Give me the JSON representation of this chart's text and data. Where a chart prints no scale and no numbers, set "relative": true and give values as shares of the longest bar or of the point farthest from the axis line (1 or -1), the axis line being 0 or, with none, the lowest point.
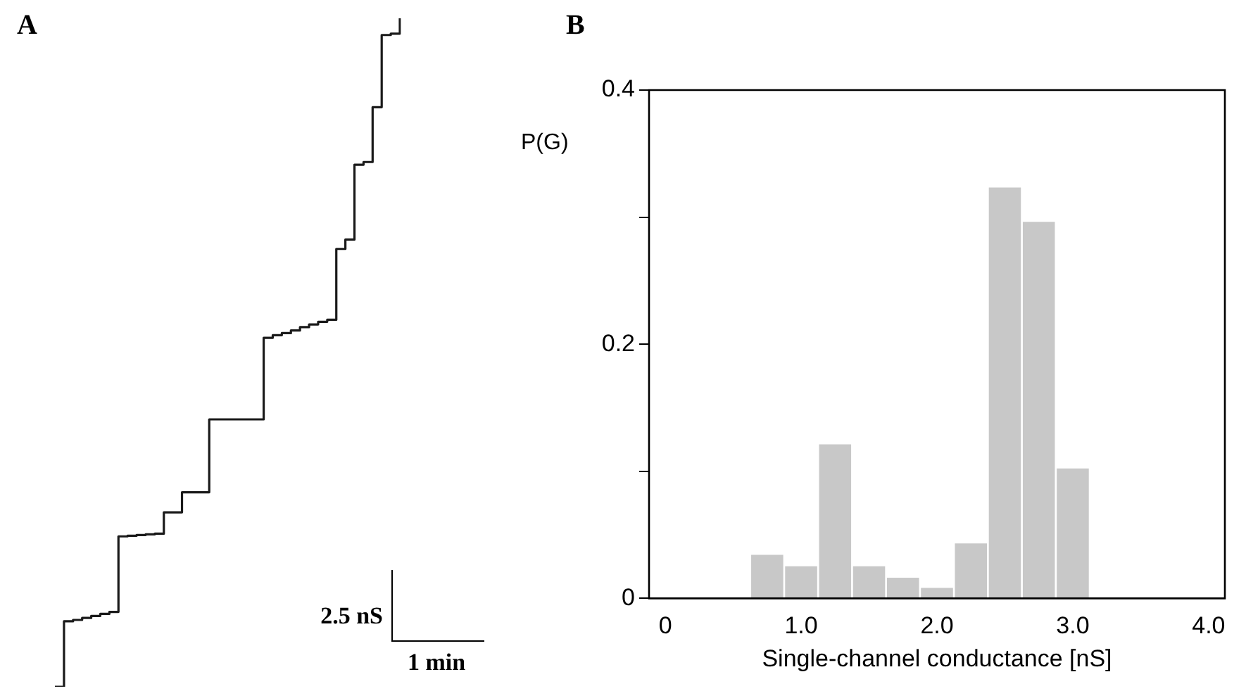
{
  "chart_data": [
    {
      "type": "step",
      "title": "A",
      "relative": true,
      "color": "#1a1a1a",
      "categories": [
        null,
        null,
        null,
        null,
        null,
        null,
        null,
        null,
        null,
        null,
        null,
        null,
        null,
        null,
        null,
        null,
        null,
        null,
        null,
        null,
        null,
        null,
        null,
        null,
        null,
        null,
        null,
        null,
        null,
        null,
        null,
        null,
        null,
        null,
        null,
        null,
        null,
        null,
        null
      ],
      "values": [
        0,
        0.098,
        0.1,
        0.103,
        0.106,
        0.109,
        0.112,
        0.225,
        0.226,
        0.227,
        0.228,
        0.229,
        0.261,
        0.261,
        0.291,
        0.291,
        0.291,
        0.4,
        0.4,
        0.4,
        0.4,
        0.4,
        0.4,
        0.522,
        0.526,
        0.529,
        0.533,
        0.538,
        0.542,
        0.546,
        0.549,
        0.655,
        0.669,
        0.781,
        0.785,
        0.867,
        0.975,
        0.977,
        1
      ],
      "annotations": [
        "2.5 nS",
        "1 min"
      ]
    },
    {
      "type": "histogram",
      "title": "B",
      "xlabel": "Single-channel conductance [nS]",
      "ylabel": "P(G)",
      "color": "#c8c8c8",
      "bins": [
        0.625,
        0.875,
        1.125,
        1.375,
        1.625,
        1.875,
        2.125,
        2.375,
        2.625,
        2.875,
        3.125
      ],
      "values": [
        0.035,
        0.026,
        0.122,
        0.026,
        0.017,
        0.009,
        0.044,
        0.324,
        0.297,
        0.103
      ],
      "xlim": [
        -0.12,
        4.12
      ],
      "ylim": [
        0,
        0.4
      ],
      "xticks": [
        0,
        {
          "value": 1,
          "label": "1.0"
        },
        {
          "value": 2,
          "label": "2.0"
        },
        {
          "value": 3,
          "label": "3.0"
        },
        {
          "value": 4,
          "label": "4.0"
        }
      ],
      "yticks": [
        0,
        {
          "value": 0.1,
          "label": null
        },
        0.2,
        {
          "value": 0.3,
          "label": null
        },
        0.4
      ]
    }
  ]
}
